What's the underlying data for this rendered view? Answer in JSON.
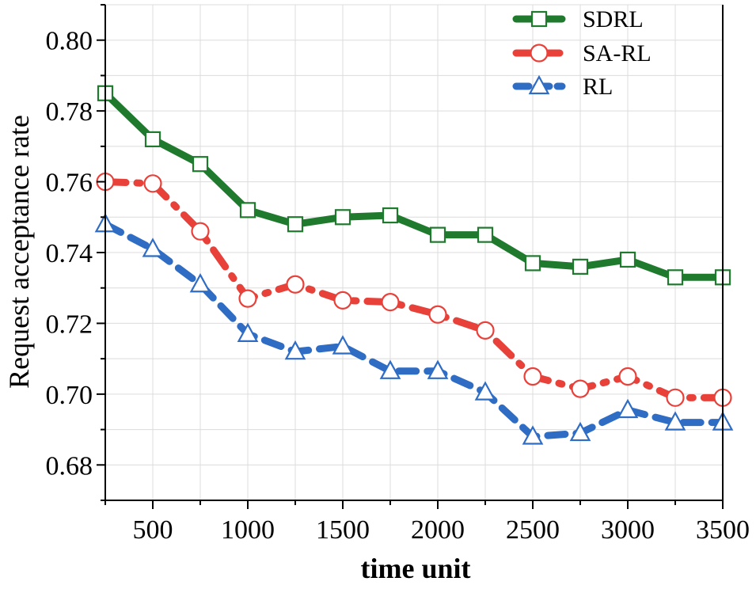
{
  "chart_data": {
    "type": "line",
    "title": "",
    "xlabel": "time unit",
    "ylabel": "Request acceptance rate",
    "xlim": [
      250,
      3500
    ],
    "ylim": [
      0.67,
      0.81
    ],
    "grid": true,
    "legend_position": "top-right",
    "x": [
      250,
      500,
      750,
      1000,
      1250,
      1500,
      1750,
      2000,
      2250,
      2500,
      2750,
      3000,
      3250,
      3500
    ],
    "xticks": [
      500,
      1000,
      1500,
      2000,
      2500,
      3000,
      3500
    ],
    "xtick_labels": [
      "500",
      "1000",
      "1500",
      "2000",
      "2500",
      "3000",
      "3500"
    ],
    "yticks": [
      0.68,
      0.7,
      0.72,
      0.74,
      0.76,
      0.78,
      0.8
    ],
    "ytick_labels": [
      "0.68",
      "0.70",
      "0.72",
      "0.74",
      "0.76",
      "0.78",
      "0.80"
    ],
    "series": [
      {
        "name": "SDRL",
        "color": "#1f7a2e",
        "marker": "square",
        "line_style": "solid",
        "values": [
          0.785,
          0.772,
          0.765,
          0.752,
          0.748,
          0.75,
          0.7505,
          0.745,
          0.745,
          0.737,
          0.736,
          0.738,
          0.733,
          0.733
        ]
      },
      {
        "name": "SA-RL",
        "color": "#e8413a",
        "marker": "circle",
        "line_style": "dashdot",
        "values": [
          0.76,
          0.7595,
          0.746,
          0.727,
          0.731,
          0.7265,
          0.726,
          0.7225,
          0.718,
          0.705,
          0.7015,
          0.705,
          0.699,
          0.699
        ]
      },
      {
        "name": "RL",
        "color": "#2f6cc4",
        "marker": "triangle",
        "line_style": "dashed",
        "values": [
          0.748,
          0.741,
          0.731,
          0.717,
          0.712,
          0.7135,
          0.7065,
          0.7065,
          0.7005,
          0.688,
          0.689,
          0.6955,
          0.692,
          0.692
        ]
      }
    ]
  }
}
